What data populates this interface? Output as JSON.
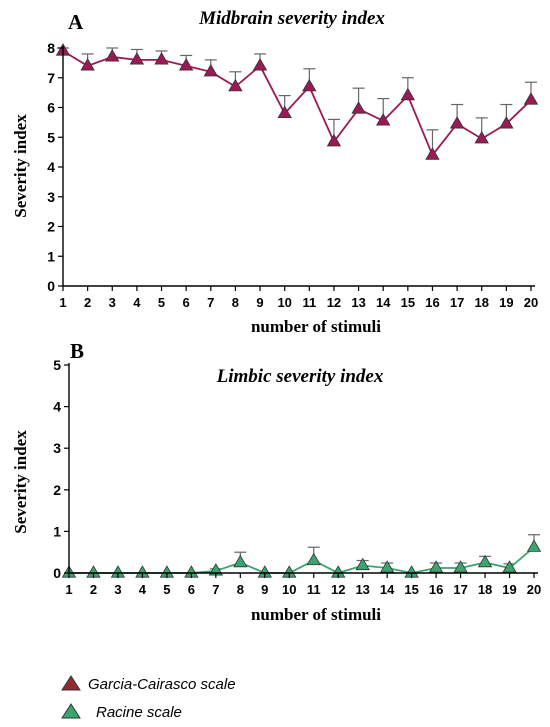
{
  "colors": {
    "series_a": "#9b1a55",
    "series_b": "#3aa56e",
    "legend_a": "#8f2d2d",
    "axis": "#000000",
    "error_bar": "#666666"
  },
  "legend": [
    {
      "label": "Garcia-Cairasco scale",
      "marker": "triangle-icon",
      "color_key": "legend_a"
    },
    {
      "label": "Racine scale",
      "marker": "triangle-icon",
      "color_key": "series_b"
    }
  ],
  "chart_data": [
    {
      "type": "line",
      "panel_label": "A",
      "title": "Midbrain severity index",
      "xlabel": "number of stimuli",
      "ylabel": "Severity index",
      "x": [
        1,
        2,
        3,
        4,
        5,
        6,
        7,
        8,
        9,
        10,
        11,
        12,
        13,
        14,
        15,
        16,
        17,
        18,
        19,
        20
      ],
      "ylim": [
        0,
        8
      ],
      "yticks": [
        "0",
        "1",
        "2",
        "3",
        "4",
        "5",
        "6",
        "7",
        "8"
      ],
      "xticks": [
        "1",
        "2",
        "3",
        "4",
        "5",
        "6",
        "7",
        "8",
        "9",
        "10",
        "11",
        "12",
        "13",
        "14",
        "15",
        "16",
        "17",
        "18",
        "19",
        "20"
      ],
      "series": [
        {
          "values": [
            7.9,
            7.4,
            7.7,
            7.6,
            7.6,
            7.4,
            7.2,
            6.7,
            7.4,
            5.8,
            6.7,
            4.85,
            5.95,
            5.55,
            6.4,
            4.4,
            5.45,
            4.95,
            5.45,
            6.25
          ],
          "error": [
            0.1,
            0.4,
            0.3,
            0.35,
            0.3,
            0.35,
            0.4,
            0.5,
            0.4,
            0.6,
            0.6,
            0.75,
            0.7,
            0.75,
            0.6,
            0.85,
            0.65,
            0.7,
            0.65,
            0.6
          ],
          "color_key": "series_a"
        }
      ]
    },
    {
      "type": "line",
      "panel_label": "B",
      "title": "Limbic severity index",
      "xlabel": "number of stimuli",
      "ylabel": "Severity index",
      "x": [
        1,
        2,
        3,
        4,
        5,
        6,
        7,
        8,
        9,
        10,
        11,
        12,
        13,
        14,
        15,
        16,
        17,
        18,
        19,
        20
      ],
      "ylim": [
        0,
        5
      ],
      "yticks": [
        "0",
        "1",
        "2",
        "3",
        "4",
        "5"
      ],
      "xticks": [
        "1",
        "2",
        "3",
        "4",
        "5",
        "6",
        "7",
        "8",
        "9",
        "10",
        "11",
        "12",
        "13",
        "14",
        "15",
        "16",
        "17",
        "18",
        "19",
        "20"
      ],
      "series": [
        {
          "values": [
            0,
            0,
            0,
            0,
            0,
            0,
            0.05,
            0.25,
            0,
            0,
            0.3,
            0,
            0.18,
            0.12,
            0,
            0.12,
            0.12,
            0.25,
            0.12,
            0.62
          ],
          "error": [
            0,
            0,
            0,
            0,
            0,
            0,
            0.05,
            0.25,
            0,
            0,
            0.32,
            0,
            0.12,
            0.12,
            0,
            0.12,
            0.12,
            0.15,
            0.1,
            0.3
          ],
          "color_key": "series_b"
        }
      ]
    }
  ]
}
